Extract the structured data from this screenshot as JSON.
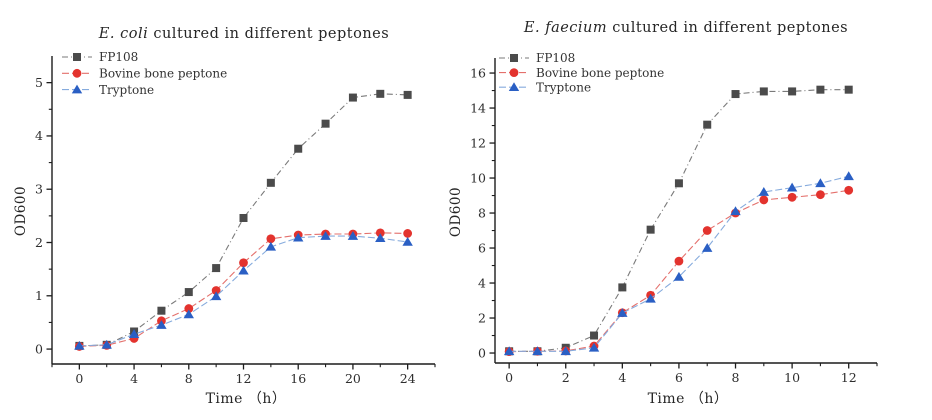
{
  "page": {
    "background": "#ffffff",
    "text_color": "#2e2e2e",
    "axis_color": "#1c1c1c"
  },
  "chart_data": [
    {
      "type": "line",
      "id": "ecoli",
      "title_italic": "E. coli",
      "title_rest": " cultured in different peptones",
      "xlabel": "Time （h）",
      "ylabel": "OD600",
      "legend_position": "top-left",
      "grid": false,
      "xlim": [
        -2,
        26
      ],
      "ylim": [
        -0.28,
        5.5
      ],
      "x_major_ticks": [
        0,
        4,
        8,
        12,
        16,
        20,
        24
      ],
      "x_minor_ticks": [
        -2,
        2,
        6,
        10,
        14,
        18,
        22,
        26
      ],
      "y_major_ticks": [
        0,
        1,
        2,
        3,
        4,
        5
      ],
      "y_minor_ticks": [
        0.5,
        1.5,
        2.5,
        3.5,
        4.5
      ],
      "x": [
        0,
        2,
        4,
        6,
        8,
        10,
        12,
        14,
        16,
        18,
        20,
        22,
        24
      ],
      "series": [
        {
          "name": "FP108",
          "marker": "square",
          "marker_color": "#4b4b4b",
          "line_color": "#7a7a7a",
          "dash": "6 3 1 3",
          "values": [
            0.06,
            0.08,
            0.33,
            0.72,
            1.07,
            1.52,
            2.46,
            3.12,
            3.76,
            4.23,
            4.72,
            4.79,
            4.77
          ]
        },
        {
          "name": "Bovine bone peptone",
          "marker": "circle",
          "marker_color": "#e3332e",
          "line_color": "#e4706c",
          "dash": "7 3",
          "values": [
            0.05,
            0.07,
            0.2,
            0.53,
            0.76,
            1.1,
            1.62,
            2.07,
            2.14,
            2.16,
            2.16,
            2.18,
            2.17
          ]
        },
        {
          "name": "Tryptone",
          "marker": "triangle",
          "marker_color": "#2a5fc4",
          "line_color": "#86abdd",
          "dash": "7 3",
          "values": [
            0.06,
            0.08,
            0.28,
            0.45,
            0.65,
            0.99,
            1.47,
            1.92,
            2.09,
            2.12,
            2.12,
            2.08,
            2.01
          ]
        }
      ]
    },
    {
      "type": "line",
      "id": "efaecium",
      "title_italic": "E. faecium",
      "title_rest": " cultured in different peptones",
      "xlabel": "Time （h）",
      "ylabel": "OD600",
      "legend_position": "top-left",
      "grid": false,
      "xlim": [
        -0.5,
        13
      ],
      "ylim": [
        -0.57,
        16.86
      ],
      "x_major_ticks": [
        0,
        2,
        4,
        6,
        8,
        10,
        12
      ],
      "x_minor_ticks": [
        1,
        3,
        5,
        7,
        9,
        11,
        13
      ],
      "y_major_ticks": [
        0,
        2,
        4,
        6,
        8,
        10,
        12,
        14,
        16
      ],
      "y_minor_ticks": [
        1,
        3,
        5,
        7,
        9,
        11,
        13,
        15
      ],
      "x": [
        0,
        1,
        2,
        3,
        4,
        5,
        6,
        7,
        8,
        9,
        10,
        11,
        12
      ],
      "series": [
        {
          "name": "FP108",
          "marker": "square",
          "marker_color": "#4b4b4b",
          "line_color": "#7a7a7a",
          "dash": "6 3 1 3",
          "values": [
            0.1,
            0.1,
            0.3,
            1.0,
            3.75,
            7.05,
            9.7,
            13.05,
            14.8,
            14.95,
            14.95,
            15.05,
            15.05
          ]
        },
        {
          "name": "Bovine bone peptone",
          "marker": "circle",
          "marker_color": "#e3332e",
          "line_color": "#e4706c",
          "dash": "7 3",
          "values": [
            0.08,
            0.1,
            0.12,
            0.4,
            2.3,
            3.3,
            5.25,
            7.0,
            8.0,
            8.75,
            8.9,
            9.05,
            9.3
          ]
        },
        {
          "name": "Tryptone",
          "marker": "triangle",
          "marker_color": "#2a5fc4",
          "line_color": "#86abdd",
          "dash": "7 3",
          "values": [
            0.1,
            0.1,
            0.1,
            0.3,
            2.28,
            3.1,
            4.35,
            6.0,
            8.1,
            9.2,
            9.45,
            9.7,
            10.1
          ]
        }
      ]
    }
  ]
}
